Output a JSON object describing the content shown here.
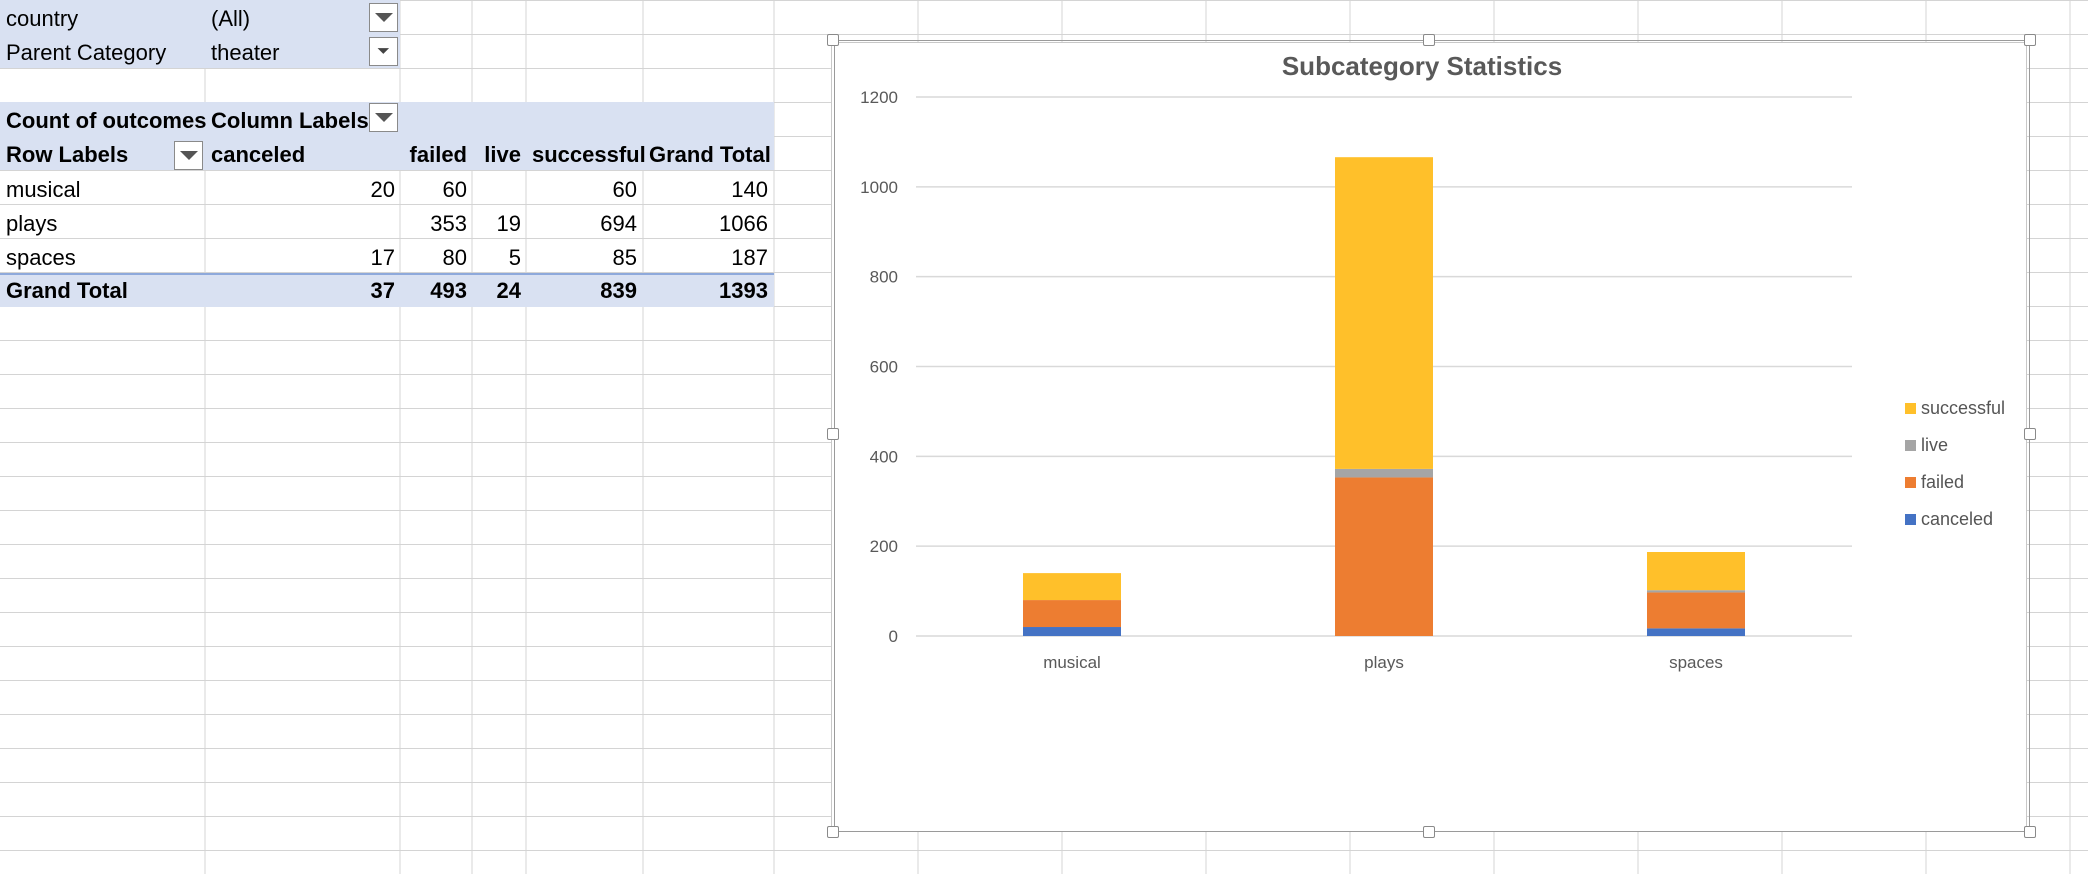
{
  "filters": [
    {
      "field": "country",
      "value": "(All)"
    },
    {
      "field": "Parent Category",
      "value": "theater"
    }
  ],
  "pivot": {
    "corner_label": "Count of outcomes",
    "column_labels": "Column Labels",
    "row_labels": "Row Labels",
    "columns": [
      "canceled",
      "failed",
      "live",
      "successful",
      "Grand Total"
    ],
    "rows": [
      {
        "label": "musical",
        "values": [
          "20",
          "60",
          "",
          "60",
          "140"
        ]
      },
      {
        "label": "plays",
        "values": [
          "",
          "353",
          "19",
          "694",
          "1066"
        ]
      },
      {
        "label": "spaces",
        "values": [
          "17",
          "80",
          "5",
          "85",
          "187"
        ]
      }
    ],
    "grand_total": {
      "label": "Grand Total",
      "values": [
        "37",
        "493",
        "24",
        "839",
        "1393"
      ]
    }
  },
  "colors": {
    "canceled": "#4472c4",
    "failed": "#ed7d31",
    "live": "#a5a5a5",
    "successful": "#ffc02a",
    "header_band": "#d9e1f2"
  },
  "icons": [
    "dropdown-arrow-icon",
    "filter-dropdown-icon"
  ],
  "chart_data": {
    "type": "bar",
    "stacked": true,
    "title": "Subcategory Statistics",
    "categories": [
      "musical",
      "plays",
      "spaces"
    ],
    "series": [
      {
        "name": "canceled",
        "values": [
          20,
          0,
          17
        ]
      },
      {
        "name": "failed",
        "values": [
          60,
          353,
          80
        ]
      },
      {
        "name": "live",
        "values": [
          0,
          19,
          5
        ]
      },
      {
        "name": "successful",
        "values": [
          60,
          694,
          85
        ]
      }
    ],
    "ylim": [
      0,
      1200
    ],
    "yticks": [
      0,
      200,
      400,
      600,
      800,
      1000,
      1200
    ],
    "xlabel": "",
    "ylabel": "",
    "grid": true,
    "legend": "right",
    "legend_order": [
      "successful",
      "live",
      "failed",
      "canceled"
    ]
  }
}
